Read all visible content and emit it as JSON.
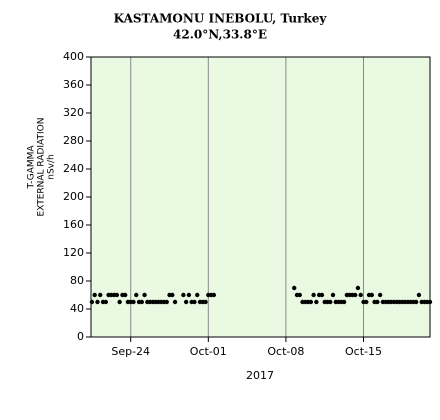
{
  "chart_data": {
    "type": "scatter",
    "title": "KASTAMONU INEBOLU, Turkey",
    "subtitle": "42.0°N,33.8°E",
    "ylabel": [
      "T-GAMMA",
      "EXTERNAL RADIATION",
      "nSv/h"
    ],
    "xlabel": "2017",
    "color": "#000000",
    "background": "#eaf9e2",
    "grid": "x",
    "ylim": [
      0,
      400
    ],
    "yticks": [
      0,
      40,
      80,
      120,
      160,
      200,
      240,
      280,
      320,
      360,
      400
    ],
    "xlim": [
      "2017-09-20T10:00",
      "2017-10-21T00:00"
    ],
    "xticks": [
      {
        "value": "2017-09-24T00:00",
        "label": "Sep-24"
      },
      {
        "value": "2017-10-01T00:00",
        "label": "Oct-01"
      },
      {
        "value": "2017-10-08T00:00",
        "label": "Oct-08"
      },
      {
        "value": "2017-10-15T00:00",
        "label": "Oct-15"
      }
    ],
    "x": [
      "2017-09-20T12:00",
      "2017-09-20T18:00",
      "2017-09-21T00:00",
      "2017-09-21T06:00",
      "2017-09-21T12:00",
      "2017-09-21T18:00",
      "2017-09-22T00:00",
      "2017-09-22T06:00",
      "2017-09-22T12:00",
      "2017-09-22T18:00",
      "2017-09-23T00:00",
      "2017-09-23T06:00",
      "2017-09-23T12:00",
      "2017-09-23T18:00",
      "2017-09-24T00:00",
      "2017-09-24T06:00",
      "2017-09-24T12:00",
      "2017-09-24T18:00",
      "2017-09-25T00:00",
      "2017-09-25T06:00",
      "2017-09-25T12:00",
      "2017-09-25T18:00",
      "2017-09-26T00:00",
      "2017-09-26T06:00",
      "2017-09-26T12:00",
      "2017-09-26T18:00",
      "2017-09-27T00:00",
      "2017-09-27T06:00",
      "2017-09-27T12:00",
      "2017-09-27T18:00",
      "2017-09-28T00:00",
      "2017-09-28T18:00",
      "2017-09-29T00:00",
      "2017-09-29T06:00",
      "2017-09-29T12:00",
      "2017-09-29T18:00",
      "2017-09-30T00:00",
      "2017-09-30T06:00",
      "2017-09-30T12:00",
      "2017-09-30T18:00",
      "2017-10-01T00:00",
      "2017-10-01T06:00",
      "2017-10-01T12:00",
      "2017-10-08T18:00",
      "2017-10-09T00:00",
      "2017-10-09T06:00",
      "2017-10-09T12:00",
      "2017-10-09T18:00",
      "2017-10-10T00:00",
      "2017-10-10T06:00",
      "2017-10-10T12:00",
      "2017-10-10T18:00",
      "2017-10-11T00:00",
      "2017-10-11T06:00",
      "2017-10-11T12:00",
      "2017-10-11T18:00",
      "2017-10-12T00:00",
      "2017-10-12T06:00",
      "2017-10-12T12:00",
      "2017-10-12T18:00",
      "2017-10-13T00:00",
      "2017-10-13T06:00",
      "2017-10-13T12:00",
      "2017-10-13T18:00",
      "2017-10-14T00:00",
      "2017-10-14T06:00",
      "2017-10-14T12:00",
      "2017-10-14T18:00",
      "2017-10-15T00:00",
      "2017-10-15T06:00",
      "2017-10-15T12:00",
      "2017-10-15T18:00",
      "2017-10-16T00:00",
      "2017-10-16T06:00",
      "2017-10-16T12:00",
      "2017-10-16T18:00",
      "2017-10-17T00:00",
      "2017-10-17T06:00",
      "2017-10-17T12:00",
      "2017-10-17T18:00",
      "2017-10-18T00:00",
      "2017-10-18T06:00",
      "2017-10-18T12:00",
      "2017-10-18T18:00",
      "2017-10-19T00:00",
      "2017-10-19T06:00",
      "2017-10-19T12:00",
      "2017-10-19T18:00",
      "2017-10-20T00:00",
      "2017-10-20T06:00",
      "2017-10-20T12:00",
      "2017-10-20T18:00",
      "2017-10-21T00:00"
    ],
    "values": [
      50,
      60,
      50,
      60,
      50,
      50,
      60,
      60,
      60,
      60,
      50,
      60,
      60,
      50,
      50,
      50,
      60,
      50,
      50,
      60,
      50,
      50,
      50,
      50,
      50,
      50,
      50,
      50,
      60,
      60,
      50,
      60,
      50,
      60,
      50,
      50,
      60,
      50,
      50,
      50,
      60,
      60,
      60,
      70,
      60,
      60,
      50,
      50,
      50,
      50,
      60,
      50,
      60,
      60,
      50,
      50,
      50,
      60,
      50,
      50,
      50,
      50,
      60,
      60,
      60,
      60,
      70,
      60,
      50,
      50,
      60,
      60,
      50,
      50,
      60,
      50,
      50,
      50,
      50,
      50,
      50,
      50,
      50,
      50,
      50,
      50,
      50,
      50,
      60,
      50,
      50,
      50,
      50
    ]
  }
}
